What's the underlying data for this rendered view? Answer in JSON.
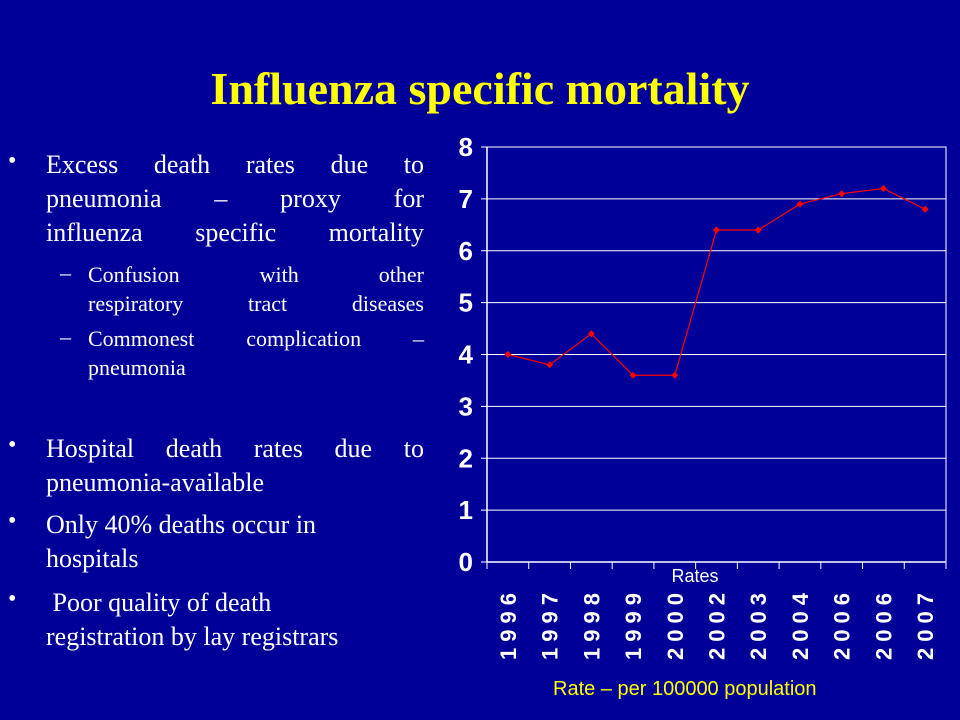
{
  "slide": {
    "title": "Influenza specific mortality",
    "bullet_symbol": "•",
    "dash_symbol": "–",
    "bullets": [
      {
        "lines": [
          "Excess death rates due to",
          "pneumonia – proxy for",
          "influenza specific mortality"
        ]
      },
      {
        "lines": [
          "Hospital  death rates due to",
          "pneumonia-available"
        ]
      },
      {
        "lines": [
          "Only 40% deaths occur in",
          "hospitals"
        ]
      },
      {
        "lines": [
          " Poor quality of death",
          "registration by lay registrars"
        ]
      }
    ],
    "sub_bullets": [
      {
        "lines": [
          "Confusion with other",
          "respiratory tract diseases"
        ]
      },
      {
        "lines": [
          "Commonest complication –",
          "pneumonia"
        ]
      }
    ]
  },
  "chart_data": {
    "type": "line",
    "categories": [
      "1996",
      "1997",
      "1998",
      "1999",
      "2000",
      "2002",
      "2003",
      "2004",
      "2006",
      "2006",
      "2007"
    ],
    "series": [
      {
        "name": "Rates",
        "values": [
          4.0,
          3.8,
          4.4,
          3.6,
          3.6,
          6.4,
          6.4,
          6.9,
          7.1,
          7.2,
          6.8
        ],
        "color": "#ff0000"
      }
    ],
    "y_ticks": [
      "0",
      "1",
      "2",
      "3",
      "4",
      "5",
      "6",
      "7",
      "8"
    ],
    "ylim": [
      0,
      8
    ],
    "grid": true,
    "plot_background": "#000099",
    "axis_color": "#ffffff",
    "footnote": "Rate – per 100000 population"
  }
}
